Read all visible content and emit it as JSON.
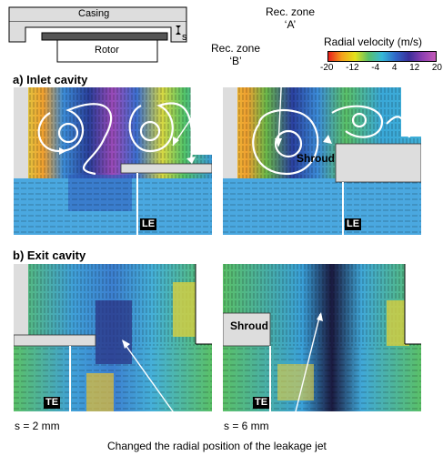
{
  "schematic": {
    "casing_label": "Casing",
    "rotor_label": "Rotor",
    "gap_label": "s"
  },
  "annotations": {
    "rec_zone_b": [
      "Rec. zone",
      "‘B’"
    ],
    "rec_zone_a": [
      "Rec. zone",
      "‘A’"
    ],
    "bottom_caption": "Changed the radial position of the leakage jet"
  },
  "colorbar": {
    "title": "Radial velocity (m/s)",
    "ticks": [
      "-20",
      "-12",
      "-4",
      "4",
      "12",
      "20"
    ],
    "colors": [
      "#e8201c",
      "#f4a11c",
      "#e4e21a",
      "#59c06a",
      "#35b8d8",
      "#2f68c8",
      "#3a2f9a",
      "#8d3fb2",
      "#c45ab8"
    ]
  },
  "sections": {
    "inlet": "a) Inlet cavity",
    "exit": "b) Exit cavity"
  },
  "panels": {
    "inlet_left_marker": "LE",
    "inlet_right_marker": "LE",
    "inlet_right_shroud": "Shroud",
    "exit_left_marker": "TE",
    "exit_right_marker": "TE",
    "exit_right_shroud": "Shroud"
  },
  "gap_sizes": {
    "left": "s = 2 mm",
    "right": "s = 6 mm"
  }
}
